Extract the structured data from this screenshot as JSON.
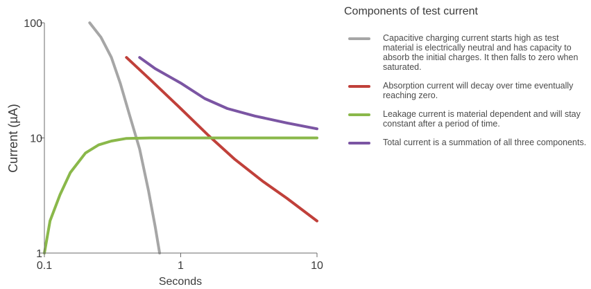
{
  "chart_data": {
    "type": "line",
    "title": "",
    "xlabel": "Seconds",
    "ylabel": "Current  (µA)",
    "x_scale": "log",
    "y_scale": "log",
    "xlim": [
      0.1,
      10
    ],
    "ylim": [
      1,
      100
    ],
    "x_ticks": [
      0.1,
      1,
      10
    ],
    "x_tick_labels": [
      "0.1",
      "1",
      "10"
    ],
    "y_ticks": [
      1,
      10,
      100
    ],
    "y_tick_labels": [
      "1",
      "10",
      "100"
    ],
    "grid": false,
    "legend_title": "Components of test current",
    "legend_position": "right",
    "series": [
      {
        "key": "capacitive",
        "color": "#a6a6a6",
        "legend": "Capacitive charging current starts high as test material is electrically neutral and has capacity to absorb the initial charges. It then falls to zero when saturated.",
        "points": [
          [
            0.215,
            100
          ],
          [
            0.26,
            75
          ],
          [
            0.31,
            50
          ],
          [
            0.36,
            30
          ],
          [
            0.42,
            16
          ],
          [
            0.5,
            8
          ],
          [
            0.58,
            3.5
          ],
          [
            0.65,
            1.7
          ],
          [
            0.7,
            1
          ]
        ]
      },
      {
        "key": "absorption",
        "color": "#c0403a",
        "legend": "Absorption current will decay over time eventually reaching zero.",
        "points": [
          [
            0.4,
            50
          ],
          [
            0.6,
            32
          ],
          [
            1,
            18
          ],
          [
            1.6,
            10.5
          ],
          [
            2.5,
            6.5
          ],
          [
            4,
            4.2
          ],
          [
            6,
            3
          ],
          [
            10,
            1.9
          ]
        ]
      },
      {
        "key": "leakage",
        "color": "#8ab84a",
        "legend": "Leakage current is material dependent and will stay constant after a period of time.",
        "points": [
          [
            0.1,
            1
          ],
          [
            0.11,
            1.9
          ],
          [
            0.13,
            3.2
          ],
          [
            0.155,
            5
          ],
          [
            0.2,
            7.4
          ],
          [
            0.25,
            8.7
          ],
          [
            0.31,
            9.4
          ],
          [
            0.4,
            9.9
          ],
          [
            0.6,
            10
          ],
          [
            1,
            10
          ],
          [
            3,
            10
          ],
          [
            10,
            10
          ]
        ]
      },
      {
        "key": "total",
        "color": "#7b55a3",
        "legend": "Total current is a summation of all three components.",
        "points": [
          [
            0.5,
            50
          ],
          [
            0.65,
            40
          ],
          [
            1,
            30
          ],
          [
            1.5,
            22
          ],
          [
            2.2,
            18
          ],
          [
            3.5,
            15.5
          ],
          [
            6,
            13.5
          ],
          [
            10,
            12
          ]
        ]
      }
    ]
  }
}
